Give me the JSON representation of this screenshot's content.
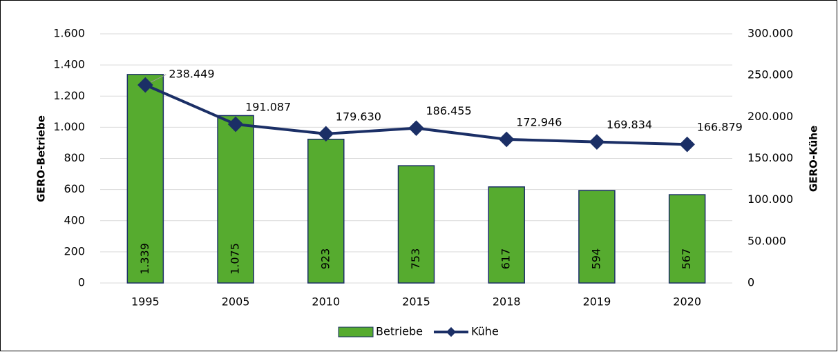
{
  "chart_data": {
    "type": "bar",
    "categories": [
      "1995",
      "2005",
      "2010",
      "2015",
      "2018",
      "2019",
      "2020"
    ],
    "series": [
      {
        "name": "Betriebe",
        "color": "#56ab2f",
        "values": [
          1339,
          1075,
          923,
          753,
          617,
          594,
          567
        ],
        "value_labels": [
          "1.339",
          "1.075",
          "923",
          "753",
          "617",
          "594",
          "567"
        ]
      },
      {
        "name": "Kühe",
        "type": "line",
        "axis": "y2",
        "color": "#1b2f66",
        "values": [
          238449,
          191087,
          179630,
          186455,
          172946,
          169834,
          166879
        ],
        "value_labels": [
          "238.449",
          "191.087",
          "179.630",
          "186.455",
          "172.946",
          "169.834",
          "166.879"
        ]
      }
    ],
    "ylabel": "GERO-Betriebe",
    "y2label": "GERO-Kühe",
    "ylim": [
      0,
      1600
    ],
    "yticks": [
      0,
      200,
      400,
      600,
      800,
      {
        "value": 1000,
        "label": "1.000"
      },
      {
        "value": 1200,
        "label": "1.200"
      },
      {
        "value": 1400,
        "label": "1.400"
      },
      {
        "value": 1600,
        "label": "1.600"
      }
    ],
    "y2lim": [
      0,
      300000
    ],
    "y2ticks": [
      0,
      {
        "value": 50000,
        "label": "50.000"
      },
      {
        "value": 100000,
        "label": "100.000"
      },
      {
        "value": 150000,
        "label": "150.000"
      },
      {
        "value": 200000,
        "label": "200.000"
      },
      {
        "value": 250000,
        "label": "250.000"
      },
      {
        "value": 300000,
        "label": "300.000"
      }
    ],
    "grid": true,
    "legend": "bottom"
  }
}
